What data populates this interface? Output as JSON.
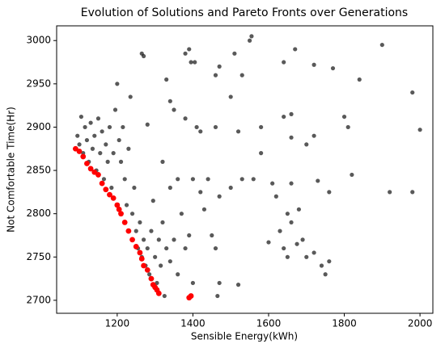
{
  "chart_data": {
    "type": "scatter",
    "title": "Evolution of Solutions and Pareto Fronts over Generations",
    "x_label": "Sensible Energy(kWh)",
    "y_label": "Not Comfortable Time(Hr)",
    "xlim": [
      1040,
      2034
    ],
    "ylim": [
      2685,
      3017
    ],
    "xticks": [
      1200,
      1400,
      1600,
      1800,
      2000
    ],
    "yticks": [
      2700,
      2750,
      2800,
      2850,
      2900,
      2950,
      3000
    ],
    "grid": false,
    "series": [
      {
        "color": "#000000",
        "x": [
          1095,
          1100,
          1105,
          1110,
          1115,
          1120,
          1125,
          1130,
          1135,
          1140,
          1145,
          1150,
          1155,
          1160,
          1165,
          1170,
          1175,
          1180,
          1185,
          1190,
          1195,
          1200,
          1205,
          1210,
          1215,
          1220,
          1225,
          1230,
          1235,
          1240,
          1245,
          1250,
          1255,
          1260,
          1265,
          1270,
          1275,
          1280,
          1285,
          1290,
          1295,
          1300,
          1305,
          1310,
          1315,
          1320,
          1325,
          1330,
          1340,
          1350,
          1360,
          1370,
          1380,
          1390,
          1395,
          1400,
          1265,
          1270,
          1330,
          1340,
          1380,
          1390,
          1395,
          1405,
          1410,
          1420,
          1460,
          1470,
          1500,
          1510,
          1530,
          1550,
          1555,
          1640,
          1670,
          1720,
          1770,
          1840,
          1900,
          1980,
          1350,
          1400,
          1420,
          1440,
          1470,
          1500,
          1530,
          1560,
          1580,
          1610,
          1620,
          1650,
          1660,
          1680,
          1690,
          1630,
          1640,
          1660,
          1675,
          1700,
          1720,
          1740,
          1750,
          1760,
          1650,
          1600,
          1520,
          1470,
          1465,
          1450,
          1460,
          1430,
          1360,
          1340,
          1320,
          1380,
          1460,
          1520,
          1640,
          1660,
          1720,
          1700,
          1800,
          1810,
          1760,
          1820,
          1920,
          1980,
          2000,
          1730,
          1280,
          1580,
          1660
        ],
        "values": [
          2890,
          2880,
          2912,
          2870,
          2900,
          2885,
          2860,
          2905,
          2875,
          2890,
          2850,
          2910,
          2870,
          2895,
          2840,
          2880,
          2860,
          2900,
          2830,
          2870,
          2920,
          2950,
          2885,
          2860,
          2900,
          2840,
          2810,
          2875,
          2935,
          2800,
          2830,
          2780,
          2760,
          2790,
          2750,
          2770,
          2740,
          2760,
          2730,
          2780,
          2815,
          2750,
          2720,
          2770,
          2740,
          2790,
          2705,
          2760,
          2745,
          2770,
          2730,
          2800,
          2760,
          2775,
          2705,
          2720,
          2985,
          2982,
          2955,
          2930,
          2985,
          2990,
          2975,
          2975,
          2900,
          2895,
          2960,
          2970,
          2935,
          2985,
          2960,
          3000,
          3005,
          2975,
          2990,
          2972,
          2968,
          2955,
          2995,
          2940,
          2920,
          2840,
          2825,
          2840,
          2820,
          2830,
          2840,
          2840,
          2870,
          2835,
          2820,
          2800,
          2835,
          2805,
          2770,
          2780,
          2760,
          2790,
          2765,
          2750,
          2755,
          2740,
          2730,
          2745,
          2750,
          2767,
          2718,
          2720,
          2705,
          2775,
          2760,
          2805,
          2840,
          2830,
          2860,
          2910,
          2900,
          2895,
          2912,
          2915,
          2890,
          2880,
          2912,
          2900,
          2825,
          2845,
          2825,
          2825,
          2897,
          2838,
          2903,
          2900,
          2888
        ]
      },
      {
        "color": "#ff0000",
        "x": [
          1090,
          1100,
          1110,
          1120,
          1130,
          1140,
          1150,
          1160,
          1170,
          1180,
          1190,
          1200,
          1205,
          1210,
          1220,
          1230,
          1240,
          1250,
          1260,
          1265,
          1270,
          1280,
          1290,
          1295,
          1300,
          1305,
          1310,
          1390,
          1395
        ],
        "values": [
          2875,
          2872,
          2866,
          2858,
          2852,
          2848,
          2845,
          2835,
          2828,
          2822,
          2818,
          2810,
          2805,
          2800,
          2790,
          2780,
          2770,
          2762,
          2755,
          2748,
          2740,
          2735,
          2725,
          2718,
          2715,
          2712,
          2708,
          2703,
          2705
        ]
      }
    ]
  }
}
